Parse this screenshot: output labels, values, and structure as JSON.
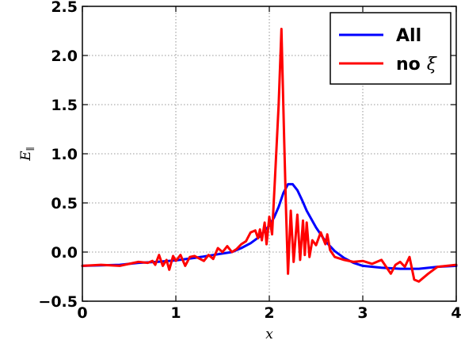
{
  "chart_data": {
    "type": "line",
    "title": "",
    "xlabel": "x",
    "ylabel_main": "E",
    "ylabel_sub": "∥",
    "xlim": [
      0,
      4
    ],
    "ylim": [
      -0.5,
      2.5
    ],
    "xticks": [
      0,
      1,
      2,
      3,
      4
    ],
    "yticks": [
      -0.5,
      0.0,
      0.5,
      1.0,
      1.5,
      2.0,
      2.5
    ],
    "xtick_labels": [
      "0",
      "1",
      "2",
      "3",
      "4"
    ],
    "ytick_labels": [
      "−0.5",
      "0.0",
      "0.5",
      "1.0",
      "1.5",
      "2.0",
      "2.5"
    ],
    "grid": true,
    "legend_position": "top-right",
    "series": [
      {
        "name": "All",
        "legend_label": "All",
        "color": "#0000ff",
        "points": [
          [
            0.0,
            -0.14
          ],
          [
            0.2,
            -0.135
          ],
          [
            0.4,
            -0.13
          ],
          [
            0.6,
            -0.11
          ],
          [
            0.8,
            -0.1
          ],
          [
            1.0,
            -0.085
          ],
          [
            1.2,
            -0.06
          ],
          [
            1.4,
            -0.03
          ],
          [
            1.6,
            0.0
          ],
          [
            1.7,
            0.04
          ],
          [
            1.8,
            0.09
          ],
          [
            1.9,
            0.16
          ],
          [
            2.0,
            0.27
          ],
          [
            2.05,
            0.35
          ],
          [
            2.1,
            0.46
          ],
          [
            2.15,
            0.6
          ],
          [
            2.2,
            0.69
          ],
          [
            2.25,
            0.69
          ],
          [
            2.3,
            0.63
          ],
          [
            2.35,
            0.53
          ],
          [
            2.4,
            0.42
          ],
          [
            2.5,
            0.25
          ],
          [
            2.6,
            0.11
          ],
          [
            2.7,
            0.01
          ],
          [
            2.8,
            -0.06
          ],
          [
            2.9,
            -0.11
          ],
          [
            3.0,
            -0.14
          ],
          [
            3.2,
            -0.16
          ],
          [
            3.4,
            -0.17
          ],
          [
            3.6,
            -0.17
          ],
          [
            3.8,
            -0.15
          ],
          [
            4.0,
            -0.14
          ]
        ]
      },
      {
        "name": "no ξ",
        "legend_label": "no",
        "legend_symbol": "ξ",
        "color": "#ff0000",
        "points": [
          [
            0.0,
            -0.14
          ],
          [
            0.2,
            -0.13
          ],
          [
            0.4,
            -0.14
          ],
          [
            0.5,
            -0.12
          ],
          [
            0.6,
            -0.1
          ],
          [
            0.7,
            -0.11
          ],
          [
            0.75,
            -0.09
          ],
          [
            0.78,
            -0.13
          ],
          [
            0.82,
            -0.03
          ],
          [
            0.86,
            -0.14
          ],
          [
            0.9,
            -0.08
          ],
          [
            0.93,
            -0.18
          ],
          [
            0.97,
            -0.04
          ],
          [
            1.0,
            -0.09
          ],
          [
            1.05,
            -0.03
          ],
          [
            1.1,
            -0.14
          ],
          [
            1.15,
            -0.05
          ],
          [
            1.2,
            -0.04
          ],
          [
            1.3,
            -0.09
          ],
          [
            1.35,
            -0.03
          ],
          [
            1.4,
            -0.07
          ],
          [
            1.45,
            0.04
          ],
          [
            1.5,
            0.0
          ],
          [
            1.55,
            0.06
          ],
          [
            1.6,
            0.0
          ],
          [
            1.65,
            0.03
          ],
          [
            1.7,
            0.08
          ],
          [
            1.75,
            0.11
          ],
          [
            1.8,
            0.2
          ],
          [
            1.85,
            0.22
          ],
          [
            1.88,
            0.14
          ],
          [
            1.9,
            0.23
          ],
          [
            1.92,
            0.12
          ],
          [
            1.95,
            0.3
          ],
          [
            1.97,
            0.08
          ],
          [
            2.0,
            0.36
          ],
          [
            2.03,
            0.18
          ],
          [
            2.06,
            0.74
          ],
          [
            2.1,
            1.5
          ],
          [
            2.13,
            2.27
          ],
          [
            2.16,
            1.1
          ],
          [
            2.18,
            0.4
          ],
          [
            2.2,
            -0.22
          ],
          [
            2.23,
            0.42
          ],
          [
            2.26,
            -0.1
          ],
          [
            2.3,
            0.38
          ],
          [
            2.33,
            -0.08
          ],
          [
            2.36,
            0.32
          ],
          [
            2.38,
            -0.03
          ],
          [
            2.4,
            0.3
          ],
          [
            2.43,
            -0.05
          ],
          [
            2.46,
            0.12
          ],
          [
            2.5,
            0.07
          ],
          [
            2.55,
            0.2
          ],
          [
            2.6,
            0.08
          ],
          [
            2.62,
            0.18
          ],
          [
            2.65,
            0.02
          ],
          [
            2.7,
            -0.05
          ],
          [
            2.8,
            -0.08
          ],
          [
            2.9,
            -0.1
          ],
          [
            3.0,
            -0.09
          ],
          [
            3.1,
            -0.12
          ],
          [
            3.2,
            -0.08
          ],
          [
            3.3,
            -0.22
          ],
          [
            3.35,
            -0.13
          ],
          [
            3.4,
            -0.1
          ],
          [
            3.45,
            -0.15
          ],
          [
            3.5,
            -0.05
          ],
          [
            3.55,
            -0.28
          ],
          [
            3.6,
            -0.3
          ],
          [
            3.7,
            -0.22
          ],
          [
            3.8,
            -0.15
          ],
          [
            3.9,
            -0.14
          ],
          [
            4.0,
            -0.13
          ]
        ]
      }
    ]
  }
}
